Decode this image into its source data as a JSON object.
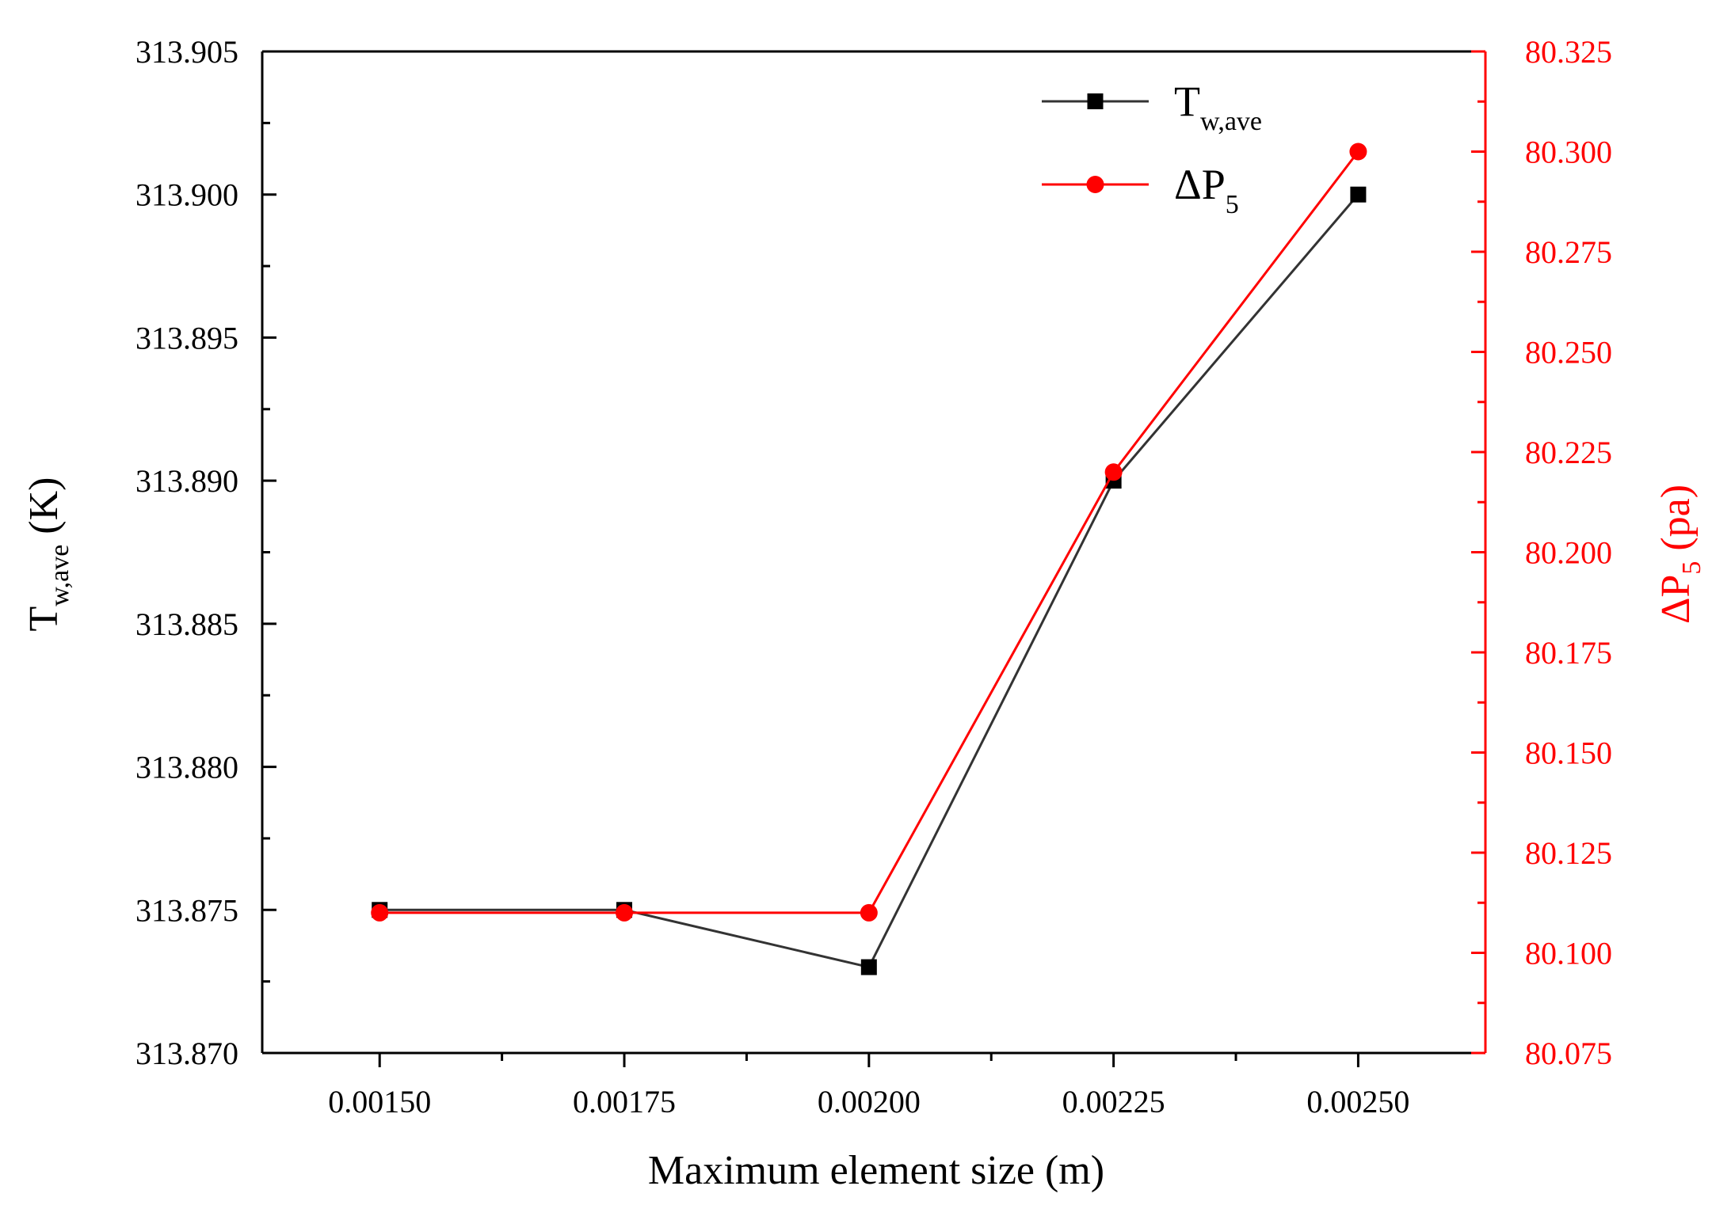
{
  "chart_data": {
    "type": "line",
    "xlabel": "Maximum element size (m)",
    "x": [
      0.0015,
      0.00175,
      0.002,
      0.00225,
      0.0025
    ],
    "x_tick_labels": [
      "0.00150",
      "0.00175",
      "0.00200",
      "0.00225",
      "0.00250"
    ],
    "xlim": [
      0.00138,
      0.00263
    ],
    "y_left": {
      "label_main": "T",
      "label_sub": "w,ave",
      "label_unit": " (K)",
      "ylim": [
        313.87,
        313.905
      ],
      "ticks": [
        313.87,
        313.875,
        313.88,
        313.885,
        313.89,
        313.895,
        313.9,
        313.905
      ],
      "tick_labels": [
        "313.870",
        "313.875",
        "313.880",
        "313.885",
        "313.890",
        "313.895",
        "313.900",
        "313.905"
      ]
    },
    "y_right": {
      "label_main": "ΔP",
      "label_sub": "5",
      "label_unit": " (pa)",
      "ylim": [
        80.075,
        80.325
      ],
      "ticks": [
        80.075,
        80.1,
        80.125,
        80.15,
        80.175,
        80.2,
        80.225,
        80.25,
        80.275,
        80.3,
        80.325
      ],
      "tick_labels": [
        "80.075",
        "80.100",
        "80.125",
        "80.150",
        "80.175",
        "80.200",
        "80.225",
        "80.250",
        "80.275",
        "80.300",
        "80.325"
      ]
    },
    "series": [
      {
        "name_main": "T",
        "name_sub": "w,ave",
        "axis": "left",
        "marker": "square",
        "color": "#333333",
        "marker_color": "#000000",
        "values": [
          313.875,
          313.875,
          313.873,
          313.89,
          313.9
        ]
      },
      {
        "name_main": "ΔP",
        "name_sub": "5",
        "axis": "right",
        "marker": "circle",
        "color": "#ff0000",
        "marker_color": "#ff0000",
        "values": [
          80.11,
          80.11,
          80.11,
          80.22,
          80.3
        ]
      }
    ],
    "legend_position": "top-right",
    "grid": false,
    "colors": {
      "left_axis": "#000000",
      "right_axis": "#ff0000"
    }
  }
}
